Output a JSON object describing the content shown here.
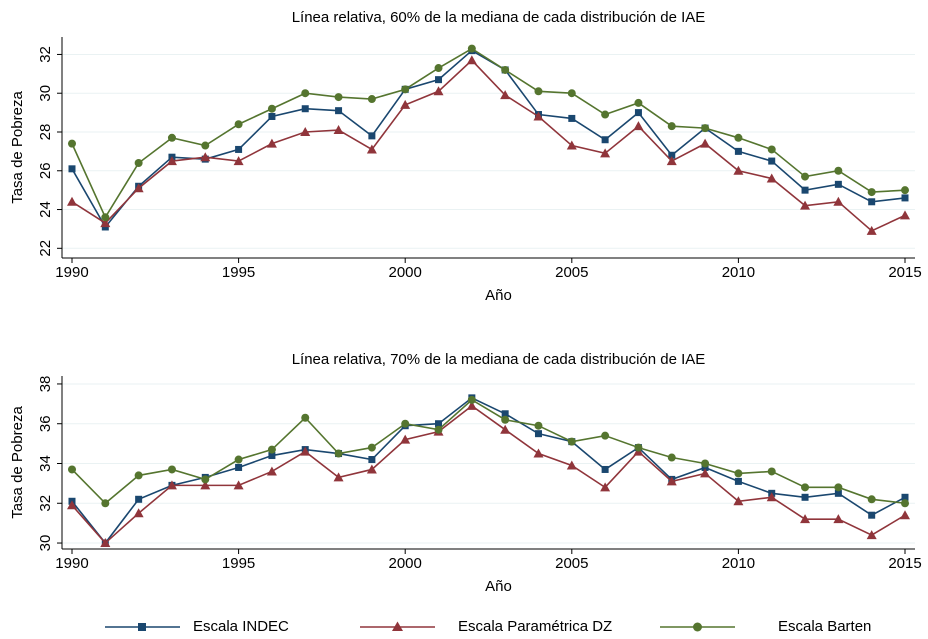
{
  "chart_data": [
    {
      "type": "line",
      "title": "Línea relativa, 60% de la mediana de cada distribución de IAE",
      "x_label": "Año",
      "y_label": "Tasa de Pobreza",
      "x": [
        1990,
        1991,
        1992,
        1993,
        1994,
        1995,
        1996,
        1997,
        1998,
        1999,
        2000,
        2001,
        2002,
        2003,
        2004,
        2005,
        2006,
        2007,
        2008,
        2009,
        2010,
        2011,
        2012,
        2013,
        2014,
        2015
      ],
      "xlim": [
        1989.7,
        2015.3
      ],
      "xticks": [
        1990,
        1995,
        2000,
        2005,
        2010,
        2015
      ],
      "ylim": [
        21.5,
        32.9
      ],
      "yticks": [
        22,
        24,
        26,
        28,
        30,
        32
      ],
      "grid": true,
      "series": [
        {
          "name": "Escala INDEC",
          "color": "#1a476f",
          "marker": "square",
          "values": [
            26.1,
            23.1,
            25.2,
            26.7,
            26.6,
            27.1,
            28.8,
            29.2,
            29.1,
            27.8,
            30.2,
            30.7,
            32.2,
            31.2,
            28.9,
            28.7,
            27.6,
            29.0,
            26.8,
            28.2,
            27.0,
            26.5,
            25.0,
            25.3,
            24.4,
            24.6
          ]
        },
        {
          "name": "Escala Paramétrica DZ",
          "color": "#90353b",
          "marker": "triangle",
          "values": [
            24.4,
            23.3,
            25.1,
            26.5,
            26.7,
            26.5,
            27.4,
            28.0,
            28.1,
            27.1,
            29.4,
            30.1,
            31.7,
            29.9,
            28.8,
            27.3,
            26.9,
            28.3,
            26.5,
            27.4,
            26.0,
            25.6,
            24.2,
            24.4,
            22.9,
            23.7
          ]
        },
        {
          "name": "Escala Barten",
          "color": "#55752f",
          "marker": "circle",
          "values": [
            27.4,
            23.6,
            26.4,
            27.7,
            27.3,
            28.4,
            29.2,
            30.0,
            29.8,
            29.7,
            30.2,
            31.3,
            32.3,
            31.2,
            30.1,
            30.0,
            28.9,
            29.5,
            28.3,
            28.2,
            27.7,
            27.1,
            25.7,
            26.0,
            24.9,
            25.0
          ]
        }
      ]
    },
    {
      "type": "line",
      "title": "Línea relativa, 70% de la mediana de cada distribución de IAE",
      "x_label": "Año",
      "y_label": "Tasa de Pobreza",
      "x": [
        1990,
        1991,
        1992,
        1993,
        1994,
        1995,
        1996,
        1997,
        1998,
        1999,
        2000,
        2001,
        2002,
        2003,
        2004,
        2005,
        2006,
        2007,
        2008,
        2009,
        2010,
        2011,
        2012,
        2013,
        2014,
        2015
      ],
      "xlim": [
        1989.7,
        2015.3
      ],
      "xticks": [
        1990,
        1995,
        2000,
        2005,
        2010,
        2015
      ],
      "ylim": [
        29.7,
        38.4
      ],
      "yticks": [
        30,
        32,
        34,
        36,
        38
      ],
      "grid": true,
      "series": [
        {
          "color": "#1a476f",
          "marker": "square",
          "values": [
            32.1,
            30.0,
            32.2,
            32.9,
            33.3,
            33.8,
            34.4,
            34.7,
            34.5,
            34.2,
            35.9,
            36.0,
            37.3,
            36.5,
            35.5,
            35.1,
            33.7,
            34.8,
            33.2,
            33.8,
            33.1,
            32.5,
            32.3,
            32.5,
            31.4,
            32.3
          ]
        },
        {
          "color": "#90353b",
          "marker": "triangle",
          "values": [
            31.9,
            30.0,
            31.5,
            32.9,
            32.9,
            32.9,
            33.6,
            34.6,
            33.3,
            33.7,
            35.2,
            35.6,
            36.9,
            35.7,
            34.5,
            33.9,
            32.8,
            34.6,
            33.1,
            33.5,
            32.1,
            32.3,
            31.2,
            31.2,
            30.4,
            31.4
          ]
        },
        {
          "color": "#55752f",
          "marker": "circle",
          "values": [
            33.7,
            32.0,
            33.4,
            33.7,
            33.2,
            34.2,
            34.7,
            36.3,
            34.5,
            34.8,
            36.0,
            35.7,
            37.2,
            36.2,
            35.9,
            35.1,
            35.4,
            34.8,
            34.3,
            34.0,
            33.5,
            33.6,
            32.8,
            32.8,
            32.2,
            32.0
          ]
        }
      ]
    }
  ]
}
